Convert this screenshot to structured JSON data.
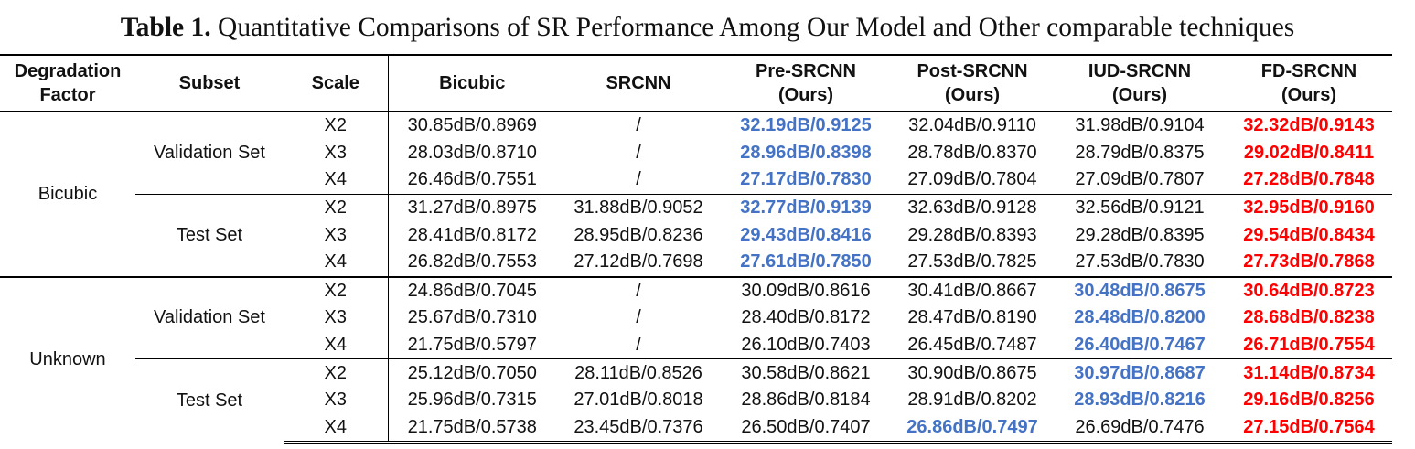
{
  "caption": {
    "label": "Table 1.",
    "text": "Quantitative Comparisons of SR Performance Among Our Model and Other comparable techniques"
  },
  "columns": [
    {
      "line1": "Degradation",
      "line2": "Factor"
    },
    {
      "line1": "Subset",
      "line2": ""
    },
    {
      "line1": "Scale",
      "line2": ""
    },
    {
      "line1": "Bicubic",
      "line2": ""
    },
    {
      "line1": "SRCNN",
      "line2": ""
    },
    {
      "line1": "Pre-SRCNN",
      "line2": "(Ours)"
    },
    {
      "line1": "Post-SRCNN",
      "line2": "(Ours)"
    },
    {
      "line1": "IUD-SRCNN",
      "line2": "(Ours)"
    },
    {
      "line1": "FD-SRCNN",
      "line2": "(Ours)"
    }
  ],
  "groups": [
    {
      "factor": "Bicubic",
      "subsets": [
        {
          "name": "Validation Set",
          "rows": [
            {
              "scale": "X2",
              "cells": [
                {
                  "v": "30.85dB/0.8969",
                  "s": ""
                },
                {
                  "v": "/",
                  "s": ""
                },
                {
                  "v": "32.19dB/0.9125",
                  "s": "blue"
                },
                {
                  "v": "32.04dB/0.9110",
                  "s": ""
                },
                {
                  "v": "31.98dB/0.9104",
                  "s": ""
                },
                {
                  "v": "32.32dB/0.9143",
                  "s": "red"
                }
              ]
            },
            {
              "scale": "X3",
              "cells": [
                {
                  "v": "28.03dB/0.8710",
                  "s": ""
                },
                {
                  "v": "/",
                  "s": ""
                },
                {
                  "v": "28.96dB/0.8398",
                  "s": "blue"
                },
                {
                  "v": "28.78dB/0.8370",
                  "s": ""
                },
                {
                  "v": "28.79dB/0.8375",
                  "s": ""
                },
                {
                  "v": "29.02dB/0.8411",
                  "s": "red"
                }
              ]
            },
            {
              "scale": "X4",
              "cells": [
                {
                  "v": "26.46dB/0.7551",
                  "s": ""
                },
                {
                  "v": "/",
                  "s": ""
                },
                {
                  "v": "27.17dB/0.7830",
                  "s": "blue"
                },
                {
                  "v": "27.09dB/0.7804",
                  "s": ""
                },
                {
                  "v": "27.09dB/0.7807",
                  "s": ""
                },
                {
                  "v": "27.28dB/0.7848",
                  "s": "red"
                }
              ]
            }
          ]
        },
        {
          "name": "Test Set",
          "rows": [
            {
              "scale": "X2",
              "cells": [
                {
                  "v": "31.27dB/0.8975",
                  "s": ""
                },
                {
                  "v": "31.88dB/0.9052",
                  "s": ""
                },
                {
                  "v": "32.77dB/0.9139",
                  "s": "blue"
                },
                {
                  "v": "32.63dB/0.9128",
                  "s": ""
                },
                {
                  "v": "32.56dB/0.9121",
                  "s": ""
                },
                {
                  "v": "32.95dB/0.9160",
                  "s": "red"
                }
              ]
            },
            {
              "scale": "X3",
              "cells": [
                {
                  "v": "28.41dB/0.8172",
                  "s": ""
                },
                {
                  "v": "28.95dB/0.8236",
                  "s": ""
                },
                {
                  "v": "29.43dB/0.8416",
                  "s": "blue"
                },
                {
                  "v": "29.28dB/0.8393",
                  "s": ""
                },
                {
                  "v": "29.28dB/0.8395",
                  "s": ""
                },
                {
                  "v": "29.54dB/0.8434",
                  "s": "red"
                }
              ]
            },
            {
              "scale": "X4",
              "cells": [
                {
                  "v": "26.82dB/0.7553",
                  "s": ""
                },
                {
                  "v": "27.12dB/0.7698",
                  "s": ""
                },
                {
                  "v": "27.61dB/0.7850",
                  "s": "blue"
                },
                {
                  "v": "27.53dB/0.7825",
                  "s": ""
                },
                {
                  "v": "27.53dB/0.7830",
                  "s": ""
                },
                {
                  "v": "27.73dB/0.7868",
                  "s": "red"
                }
              ]
            }
          ]
        }
      ]
    },
    {
      "factor": "Unknown",
      "subsets": [
        {
          "name": "Validation Set",
          "rows": [
            {
              "scale": "X2",
              "cells": [
                {
                  "v": "24.86dB/0.7045",
                  "s": ""
                },
                {
                  "v": "/",
                  "s": ""
                },
                {
                  "v": "30.09dB/0.8616",
                  "s": ""
                },
                {
                  "v": "30.41dB/0.8667",
                  "s": ""
                },
                {
                  "v": "30.48dB/0.8675",
                  "s": "blue"
                },
                {
                  "v": "30.64dB/0.8723",
                  "s": "red"
                }
              ]
            },
            {
              "scale": "X3",
              "cells": [
                {
                  "v": "25.67dB/0.7310",
                  "s": ""
                },
                {
                  "v": "/",
                  "s": ""
                },
                {
                  "v": "28.40dB/0.8172",
                  "s": ""
                },
                {
                  "v": "28.47dB/0.8190",
                  "s": ""
                },
                {
                  "v": "28.48dB/0.8200",
                  "s": "blue"
                },
                {
                  "v": "28.68dB/0.8238",
                  "s": "red"
                }
              ]
            },
            {
              "scale": "X4",
              "cells": [
                {
                  "v": "21.75dB/0.5797",
                  "s": ""
                },
                {
                  "v": "/",
                  "s": ""
                },
                {
                  "v": "26.10dB/0.7403",
                  "s": ""
                },
                {
                  "v": "26.45dB/0.7487",
                  "s": ""
                },
                {
                  "v": "26.40dB/0.7467",
                  "s": "blue"
                },
                {
                  "v": "26.71dB/0.7554",
                  "s": "red"
                }
              ]
            }
          ]
        },
        {
          "name": "Test Set",
          "rows": [
            {
              "scale": "X2",
              "cells": [
                {
                  "v": "25.12dB/0.7050",
                  "s": ""
                },
                {
                  "v": "28.11dB/0.8526",
                  "s": ""
                },
                {
                  "v": "30.58dB/0.8621",
                  "s": ""
                },
                {
                  "v": "30.90dB/0.8675",
                  "s": ""
                },
                {
                  "v": "30.97dB/0.8687",
                  "s": "blue"
                },
                {
                  "v": "31.14dB/0.8734",
                  "s": "red"
                }
              ]
            },
            {
              "scale": "X3",
              "cells": [
                {
                  "v": "25.96dB/0.7315",
                  "s": ""
                },
                {
                  "v": "27.01dB/0.8018",
                  "s": ""
                },
                {
                  "v": "28.86dB/0.8184",
                  "s": ""
                },
                {
                  "v": "28.91dB/0.8202",
                  "s": ""
                },
                {
                  "v": "28.93dB/0.8216",
                  "s": "blue"
                },
                {
                  "v": "29.16dB/0.8256",
                  "s": "red"
                }
              ]
            },
            {
              "scale": "X4",
              "cells": [
                {
                  "v": "21.75dB/0.5738",
                  "s": ""
                },
                {
                  "v": "23.45dB/0.7376",
                  "s": ""
                },
                {
                  "v": "26.50dB/0.7407",
                  "s": ""
                },
                {
                  "v": "26.86dB/0.7497",
                  "s": "blue"
                },
                {
                  "v": "26.69dB/0.7476",
                  "s": ""
                },
                {
                  "v": "27.15dB/0.7564",
                  "s": "red"
                }
              ]
            }
          ]
        }
      ]
    }
  ],
  "highlight_colors": {
    "blue": "#4472c4",
    "red": "#ff0000"
  }
}
